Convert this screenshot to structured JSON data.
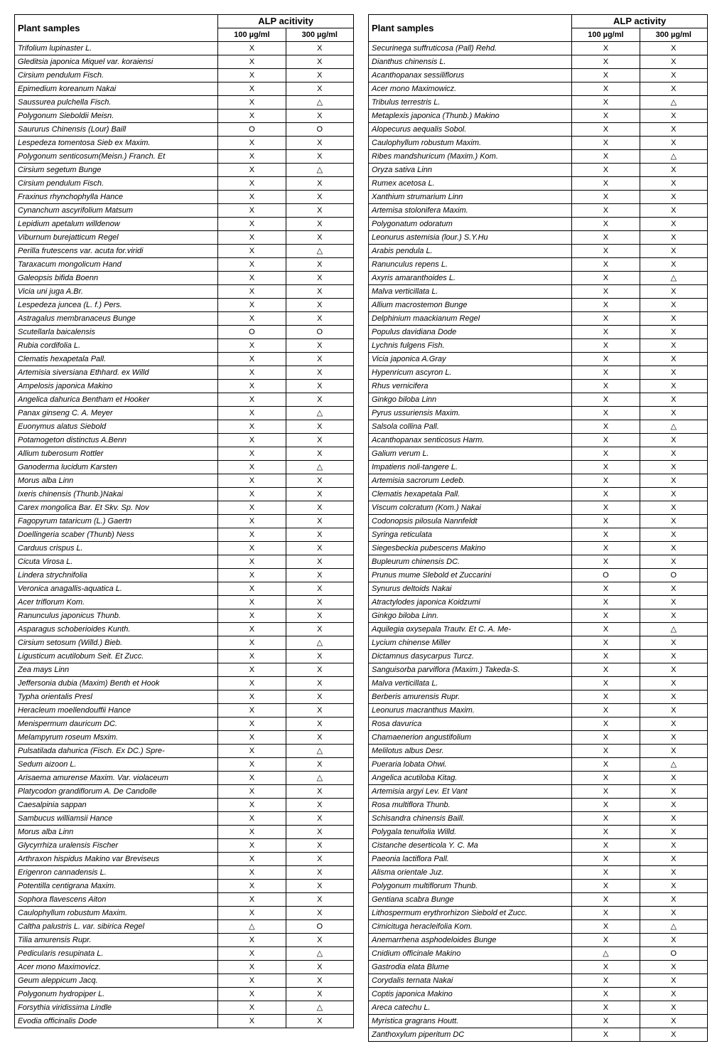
{
  "headers": {
    "plant": "Plant samples",
    "alp_left": "ALP acitivity",
    "alp_right": "ALP activity",
    "dose100": "100 µg/ml",
    "dose300": "300 µg/ml"
  },
  "leftTable": [
    {
      "name": "Trifolium lupinaster L.",
      "v100": "X",
      "v300": "X"
    },
    {
      "name": "Gleditsia japonica Miquel var. koraiensi",
      "v100": "X",
      "v300": "X"
    },
    {
      "name": "Cirsium pendulum Fisch.",
      "v100": "X",
      "v300": "X"
    },
    {
      "name": "Epimedium koreanum Nakai",
      "v100": "X",
      "v300": "X"
    },
    {
      "name": "Saussurea pulchella Fisch.",
      "v100": "X",
      "v300": "△"
    },
    {
      "name": "Polygonum Sieboldii Meisn.",
      "v100": "X",
      "v300": "X"
    },
    {
      "name": "Saururus Chinensis (Lour) Baill",
      "v100": "O",
      "v300": "O"
    },
    {
      "name": "Lespedeza tomentosa Sieb ex Maxim.",
      "v100": "X",
      "v300": "X"
    },
    {
      "name": "Polygonum senticosum(Meisn.) Franch. Et",
      "v100": "X",
      "v300": "X"
    },
    {
      "name": "Cirsium segetum Bunge",
      "v100": "X",
      "v300": "△"
    },
    {
      "name": "Cirsium pendulum Fisch.",
      "v100": "X",
      "v300": "X"
    },
    {
      "name": "Fraxinus rhynchophylla Hance",
      "v100": "X",
      "v300": "X"
    },
    {
      "name": "Cynanchum ascyrifolium Matsum",
      "v100": "X",
      "v300": "X"
    },
    {
      "name": "Lepidium apetalum willdenow",
      "v100": "X",
      "v300": "X"
    },
    {
      "name": "Viburnum burejatticum Regel",
      "v100": "X",
      "v300": "X"
    },
    {
      "name": "Perilla frutescens var. acuta for.viridi",
      "v100": "X",
      "v300": "△"
    },
    {
      "name": "Taraxacum mongolicum Hand",
      "v100": "X",
      "v300": "X"
    },
    {
      "name": "Galeopsis bifida Boenn",
      "v100": "X",
      "v300": "X"
    },
    {
      "name": "Vicia uni juga A.Br.",
      "v100": "X",
      "v300": "X"
    },
    {
      "name": "Lespedeza juncea (L. f.) Pers.",
      "v100": "X",
      "v300": "X"
    },
    {
      "name": "Astragalus membranaceus Bunge",
      "v100": "X",
      "v300": "X"
    },
    {
      "name": "Scutellarla baicalensis",
      "v100": "O",
      "v300": "O"
    },
    {
      "name": "Rubia cordifolia L.",
      "v100": "X",
      "v300": "X"
    },
    {
      "name": "Clematis hexapetala Pall.",
      "v100": "X",
      "v300": "X"
    },
    {
      "name": "Artemisia siversiana Ethhard. ex Willd",
      "v100": "X",
      "v300": "X"
    },
    {
      "name": "Ampelosis japonica Makino",
      "v100": "X",
      "v300": "X"
    },
    {
      "name": "Angelica dahurica Bentham et Hooker",
      "v100": "X",
      "v300": "X"
    },
    {
      "name": "Panax ginseng C. A. Meyer",
      "v100": "X",
      "v300": "△"
    },
    {
      "name": "Euonymus alatus Siebold",
      "v100": "X",
      "v300": "X"
    },
    {
      "name": "Potamogeton distinctus A.Benn",
      "v100": "X",
      "v300": "X"
    },
    {
      "name": "Allium tuberosum Rottler",
      "v100": "X",
      "v300": "X"
    },
    {
      "name": "Ganoderma lucidum Karsten",
      "v100": "X",
      "v300": "△"
    },
    {
      "name": "Morus alba Linn",
      "v100": "X",
      "v300": "X"
    },
    {
      "name": "Ixeris chinensis (Thunb.)Nakai",
      "v100": "X",
      "v300": "X"
    },
    {
      "name": "Carex mongolica Bar. Et Skv. Sp. Nov",
      "v100": "X",
      "v300": "X"
    },
    {
      "name": "Fagopyrum tataricum (L.) Gaertn",
      "v100": "X",
      "v300": "X"
    },
    {
      "name": "Doellingeria scaber (Thunb) Ness",
      "v100": "X",
      "v300": "X"
    },
    {
      "name": "Carduus crispus L.",
      "v100": "X",
      "v300": "X"
    },
    {
      "name": "Cicuta Virosa L.",
      "v100": "X",
      "v300": "X"
    },
    {
      "name": "Lindera strychnifolia",
      "v100": "X",
      "v300": "X"
    },
    {
      "name": "Veronica anagallis-aquatica L.",
      "v100": "X",
      "v300": "X"
    },
    {
      "name": "Acer triflorum Kom.",
      "v100": "X",
      "v300": "X"
    },
    {
      "name": "Ranunculus japonicus Thunb.",
      "v100": "X",
      "v300": "X"
    },
    {
      "name": "Asparagus schoberioides Kunth.",
      "v100": "X",
      "v300": "X"
    },
    {
      "name": "Cirsium setosum (Willd.) Bieb.",
      "v100": "X",
      "v300": "△"
    },
    {
      "name": "Ligusticum acutilobum Seit. Et Zucc.",
      "v100": "X",
      "v300": "X"
    },
    {
      "name": "Zea mays Linn",
      "v100": "X",
      "v300": "X"
    },
    {
      "name": "Jeffersonia dubia (Maxim) Benth et Hook",
      "v100": "X",
      "v300": "X"
    },
    {
      "name": "Typha orientalis Presl",
      "v100": "X",
      "v300": "X"
    },
    {
      "name": "Heracleum moellendouffii Hance",
      "v100": "X",
      "v300": "X"
    },
    {
      "name": "Menispermum dauricum DC.",
      "v100": "X",
      "v300": "X"
    },
    {
      "name": "Melampyrum roseum Msxim.",
      "v100": "X",
      "v300": "X"
    },
    {
      "name": "Pulsatilada dahurica (Fisch. Ex DC.) Spre-",
      "v100": "X",
      "v300": "△"
    },
    {
      "name": "Sedum aizoon L.",
      "v100": "X",
      "v300": "X"
    },
    {
      "name": "Arisaema amurense Maxim. Var. violaceum",
      "v100": "X",
      "v300": "△"
    },
    {
      "name": "Platycodon grandiflorum A. De Candolle",
      "v100": "X",
      "v300": "X"
    },
    {
      "name": "Caesalpinia sappan",
      "v100": "X",
      "v300": "X"
    },
    {
      "name": "Sambucus williamsii Hance",
      "v100": "X",
      "v300": "X"
    },
    {
      "name": "Morus alba Linn",
      "v100": "X",
      "v300": "X"
    },
    {
      "name": "Glycyrrhiza uralensis Fischer",
      "v100": "X",
      "v300": "X"
    },
    {
      "name": "Arthraxon hispidus Makino var Breviseus",
      "v100": "X",
      "v300": "X"
    },
    {
      "name": "Erigenron cannadensis L.",
      "v100": "X",
      "v300": "X"
    },
    {
      "name": "Potentilla centigrana Maxim.",
      "v100": "X",
      "v300": "X"
    },
    {
      "name": "Sophora flavescens Aiton",
      "v100": "X",
      "v300": "X"
    },
    {
      "name": "Caulophyllum robustum Maxim.",
      "v100": "X",
      "v300": "X"
    },
    {
      "name": "Caltha palustris L. var. sibirica Regel",
      "v100": "△",
      "v300": "O"
    },
    {
      "name": "Tilia amurensis Rupr.",
      "v100": "X",
      "v300": "X"
    },
    {
      "name": "Pedicularis resupinata L.",
      "v100": "X",
      "v300": "△"
    },
    {
      "name": "Acer mono Maximovicz.",
      "v100": "X",
      "v300": "X"
    },
    {
      "name": "Geum aleppicum Jacq.",
      "v100": "X",
      "v300": "X"
    },
    {
      "name": "Polygonum hydropiper L.",
      "v100": "X",
      "v300": "X"
    },
    {
      "name": "Forsythia viridissima Lindle",
      "v100": "X",
      "v300": "△"
    },
    {
      "name": "Evodia officinalis Dode",
      "v100": "X",
      "v300": "X"
    }
  ],
  "rightTable": [
    {
      "name": "Securinega suffruticosa (Pall) Rehd.",
      "v100": "X",
      "v300": "X"
    },
    {
      "name": "Dianthus chinensis L.",
      "v100": "X",
      "v300": "X"
    },
    {
      "name": "Acanthopanax sessiliflorus",
      "v100": "X",
      "v300": "X"
    },
    {
      "name": "Acer mono Maximowicz.",
      "v100": "X",
      "v300": "X"
    },
    {
      "name": "Tribulus terrestris L.",
      "v100": "X",
      "v300": "△"
    },
    {
      "name": "Metaplexis japonica (Thunb.) Makino",
      "v100": "X",
      "v300": "X"
    },
    {
      "name": "Alopecurus aequalis Sobol.",
      "v100": "X",
      "v300": "X"
    },
    {
      "name": "Caulophyllum robustum Maxim.",
      "v100": "X",
      "v300": "X"
    },
    {
      "name": "Ribes mandshuricum (Maxim.) Kom.",
      "v100": "X",
      "v300": "△"
    },
    {
      "name": "Oryza sativa Linn",
      "v100": "X",
      "v300": "X"
    },
    {
      "name": "Rumex acetosa L.",
      "v100": "X",
      "v300": "X"
    },
    {
      "name": "Xanthium strumarium Linn",
      "v100": "X",
      "v300": "X"
    },
    {
      "name": "Artemisa stolonifera Maxim.",
      "v100": "X",
      "v300": "X"
    },
    {
      "name": "Polygonatum odoratum",
      "v100": "X",
      "v300": "X"
    },
    {
      "name": "Leonurus astemisia (lour.) S.Y.Hu",
      "v100": "X",
      "v300": "X"
    },
    {
      "name": "Arabis pendula L.",
      "v100": "X",
      "v300": "X"
    },
    {
      "name": "Ranunculus repens L.",
      "v100": "X",
      "v300": "X"
    },
    {
      "name": "Axyris amaranthoides L.",
      "v100": "X",
      "v300": "△"
    },
    {
      "name": "Malva verticillata L.",
      "v100": "X",
      "v300": "X"
    },
    {
      "name": "Allium macrostemon Bunge",
      "v100": "X",
      "v300": "X"
    },
    {
      "name": "Delphinium maackianum Regel",
      "v100": "X",
      "v300": "X"
    },
    {
      "name": "Populus davidiana Dode",
      "v100": "X",
      "v300": "X"
    },
    {
      "name": "Lychnis fulgens Fish.",
      "v100": "X",
      "v300": "X"
    },
    {
      "name": "Vicia japonica A.Gray",
      "v100": "X",
      "v300": "X"
    },
    {
      "name": "Hypenricum ascyron L.",
      "v100": "X",
      "v300": "X"
    },
    {
      "name": "Rhus vernicifera",
      "v100": "X",
      "v300": "X"
    },
    {
      "name": "Ginkgo biloba Linn",
      "v100": "X",
      "v300": "X"
    },
    {
      "name": "Pyrus ussuriensis Maxim.",
      "v100": "X",
      "v300": "X"
    },
    {
      "name": "Salsola collina Pall.",
      "v100": "X",
      "v300": "△"
    },
    {
      "name": "Acanthopanax senticosus Harm.",
      "v100": "X",
      "v300": "X"
    },
    {
      "name": "Galium verum L.",
      "v100": "X",
      "v300": "X"
    },
    {
      "name": "Impatiens noli-tangere L.",
      "v100": "X",
      "v300": "X"
    },
    {
      "name": "Artemisia sacrorum Ledeb.",
      "v100": "X",
      "v300": "X"
    },
    {
      "name": "Clematis hexapetala Pall.",
      "v100": "X",
      "v300": "X"
    },
    {
      "name": "Viscum colcratum (Kom.) Nakai",
      "v100": "X",
      "v300": "X"
    },
    {
      "name": "Codonopsis pilosula Nannfeldt",
      "v100": "X",
      "v300": "X"
    },
    {
      "name": "Syringa reticulata",
      "v100": "X",
      "v300": "X"
    },
    {
      "name": "Siegesbeckia pubescens Makino",
      "v100": "X",
      "v300": "X"
    },
    {
      "name": "Bupleurum chinensis DC.",
      "v100": "X",
      "v300": "X"
    },
    {
      "name": "Prunus mume Slebold et Zuccarini",
      "v100": "O",
      "v300": "O"
    },
    {
      "name": "Synurus deltoids Nakai",
      "v100": "X",
      "v300": "X"
    },
    {
      "name": "Atractylodes japonica Koidzumi",
      "v100": "X",
      "v300": "X"
    },
    {
      "name": "Ginkgo biloba Linn.",
      "v100": "X",
      "v300": "X"
    },
    {
      "name": "Aquilegia oxysepala Trautv. Et C. A. Me-",
      "v100": "X",
      "v300": "△"
    },
    {
      "name": "Lycium chinense Miller",
      "v100": "X",
      "v300": "X"
    },
    {
      "name": "Dictamnus dasycarpus Turcz.",
      "v100": "X",
      "v300": "X"
    },
    {
      "name": "Sanguisorba parviflora (Maxim.) Takeda-S.",
      "v100": "X",
      "v300": "X"
    },
    {
      "name": "Malva verticillata L.",
      "v100": "X",
      "v300": "X"
    },
    {
      "name": "Berberis amurensis Rupr.",
      "v100": "X",
      "v300": "X"
    },
    {
      "name": "Leonurus macranthus Maxim.",
      "v100": "X",
      "v300": "X"
    },
    {
      "name": "Rosa davurica",
      "v100": "X",
      "v300": "X"
    },
    {
      "name": "Chamaenerion angustifolium",
      "v100": "X",
      "v300": "X"
    },
    {
      "name": "Melilotus albus Desr.",
      "v100": "X",
      "v300": "X"
    },
    {
      "name": "Pueraria lobata Ohwi.",
      "v100": "X",
      "v300": "△"
    },
    {
      "name": "Angelica acutiloba Kitag.",
      "v100": "X",
      "v300": "X"
    },
    {
      "name": "Artemisia argyi Lev. Et Vant",
      "v100": "X",
      "v300": "X"
    },
    {
      "name": "Rosa multiflora Thunb.",
      "v100": "X",
      "v300": "X"
    },
    {
      "name": "Schisandra chinensis Baill.",
      "v100": "X",
      "v300": "X"
    },
    {
      "name": "Polygala tenuifolia Willd.",
      "v100": "X",
      "v300": "X"
    },
    {
      "name": "Cistanche deserticola Y. C. Ma",
      "v100": "X",
      "v300": "X"
    },
    {
      "name": "Paeonia lactiflora Pall.",
      "v100": "X",
      "v300": "X"
    },
    {
      "name": "Alisma orientale Juz.",
      "v100": "X",
      "v300": "X"
    },
    {
      "name": "Polygonum multiflorum Thunb.",
      "v100": "X",
      "v300": "X"
    },
    {
      "name": "Gentiana scabra Bunge",
      "v100": "X",
      "v300": "X"
    },
    {
      "name": "Lithospermum erythrorhizon Siebold et Zucc.",
      "v100": "X",
      "v300": "X"
    },
    {
      "name": "Cimicituga heracleifolia Kom.",
      "v100": "X",
      "v300": "△"
    },
    {
      "name": "Anemarrhena asphodeloides Bunge",
      "v100": "X",
      "v300": "X"
    },
    {
      "name": "Cnidium officinale Makino",
      "v100": "△",
      "v300": "O"
    },
    {
      "name": "Gastrodia elata Blume",
      "v100": "X",
      "v300": "X"
    },
    {
      "name": "Corydalis ternata Nakai",
      "v100": "X",
      "v300": "X"
    },
    {
      "name": "Coptis japonica Makino",
      "v100": "X",
      "v300": "X"
    },
    {
      "name": "Areca catechu L.",
      "v100": "X",
      "v300": "X"
    },
    {
      "name": "Myristica gragrans Houtt.",
      "v100": "X",
      "v300": "X"
    },
    {
      "name": "Zanthoxylum piperitum DC",
      "v100": "X",
      "v300": "X"
    }
  ]
}
